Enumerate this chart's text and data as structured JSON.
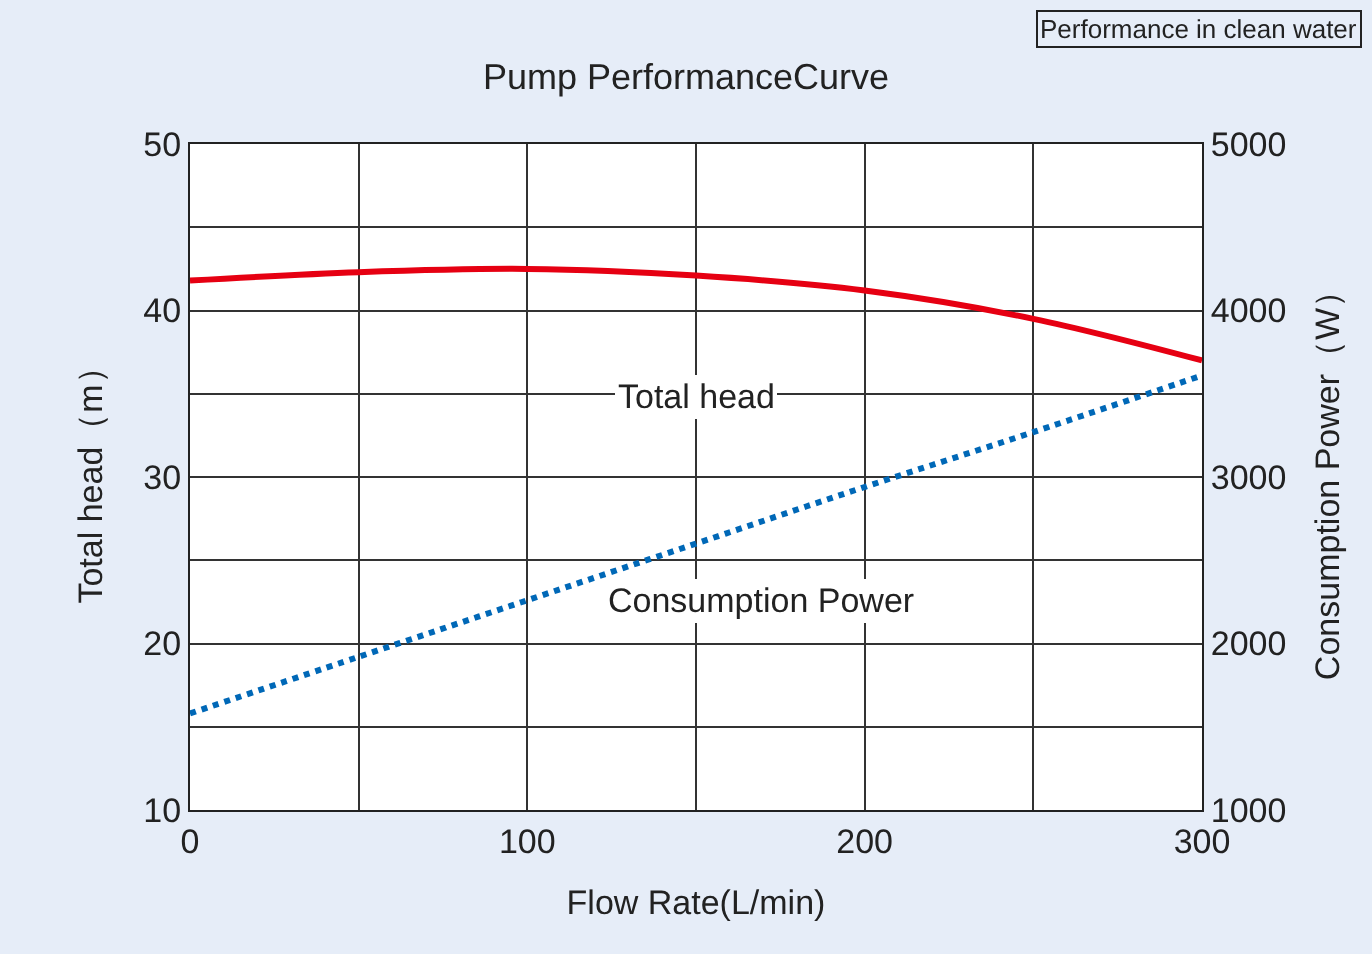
{
  "chart_data": {
    "type": "line",
    "title": "Pump PerformanceCurve",
    "xlabel": "Flow Rate(L/min)",
    "ylabel": "Total head（m）",
    "y2label": "Consumption Power（W）",
    "annotations": [
      "Performance in clean water"
    ],
    "x": [
      0,
      50,
      100,
      150,
      200,
      250,
      300
    ],
    "series": [
      {
        "name": "Total head",
        "color": "#e60012",
        "values": [
          41.8,
          42.3,
          42.5,
          42.1,
          41.2,
          39.5,
          37.0
        ],
        "line_style": "solid"
      },
      {
        "name": "Consumption Power",
        "color": "#0068b7",
        "values": [
          1580,
          1920,
          2260,
          2600,
          2940,
          3270,
          3610
        ],
        "line_style": "dotted",
        "axis": "y2"
      }
    ],
    "xlim": [
      0,
      300
    ],
    "xticks": [
      0,
      {
        "value": 50,
        "label": null
      },
      100,
      {
        "value": 150,
        "label": null
      },
      200,
      {
        "value": 250,
        "label": null
      },
      300
    ],
    "ylim": [
      10,
      50
    ],
    "yticks": [
      10,
      {
        "value": 15,
        "label": null
      },
      20,
      {
        "value": 25,
        "label": null
      },
      30,
      {
        "value": 35,
        "label": null
      },
      40,
      {
        "value": 45,
        "label": null
      },
      50
    ],
    "y2lim": [
      1000,
      5000
    ],
    "y2ticks": [
      1000,
      2000,
      3000,
      4000,
      5000
    ],
    "grid": true,
    "legend": false,
    "marker": "none"
  }
}
